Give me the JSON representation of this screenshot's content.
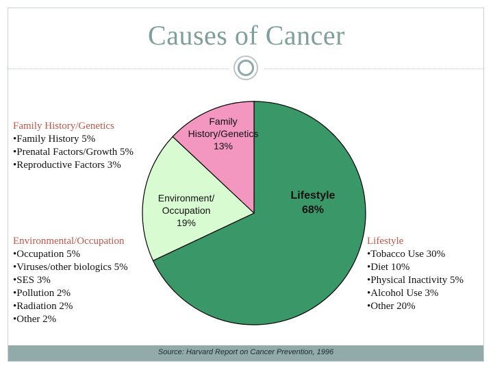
{
  "slide": {
    "title": "Causes of Cancer",
    "footer": "Source: Harvard Report on Cancer Prevention, 1996"
  },
  "colors": {
    "lifestyle": "#3a9868",
    "environment": "#d8fbd2",
    "family": "#f396c0",
    "slice_border": "#000000",
    "title": "#7f9f9a",
    "callout_heading": "#c0564b",
    "footer_bar": "#93aaaa"
  },
  "chart_data": {
    "type": "pie",
    "title": "",
    "slices": [
      {
        "name": "Lifestyle",
        "value": 68,
        "label_lines": [
          "Lifestyle",
          "68%"
        ]
      },
      {
        "name": "Environment/Occupation",
        "value": 19,
        "label_lines": [
          "Environment/",
          "Occupation",
          "19%"
        ]
      },
      {
        "name": "Family History/Genetics",
        "value": 13,
        "label_lines": [
          "Family",
          "History/Genetics",
          "13%"
        ]
      }
    ],
    "start_angle_deg": 0,
    "direction": "clockwise",
    "legend": "none"
  },
  "callouts": {
    "family": {
      "heading": "Family History/Genetics",
      "items": [
        "•Family History 5%",
        "•Prenatal Factors/Growth 5%",
        "•Reproductive Factors 3%"
      ]
    },
    "environment": {
      "heading": "Environmental/Occupation",
      "items": [
        "•Occupation 5%",
        "•Viruses/other biologics 5%",
        "•SES 3%",
        "•Pollution 2%",
        "•Radiation 2%",
        "•Other 2%"
      ]
    },
    "lifestyle": {
      "heading": "Lifestyle",
      "items": [
        "•Tobacco Use  30%",
        "•Diet 10%",
        "•Physical Inactivity  5%",
        "•Alcohol Use 3%",
        "•Other 20%"
      ]
    }
  }
}
